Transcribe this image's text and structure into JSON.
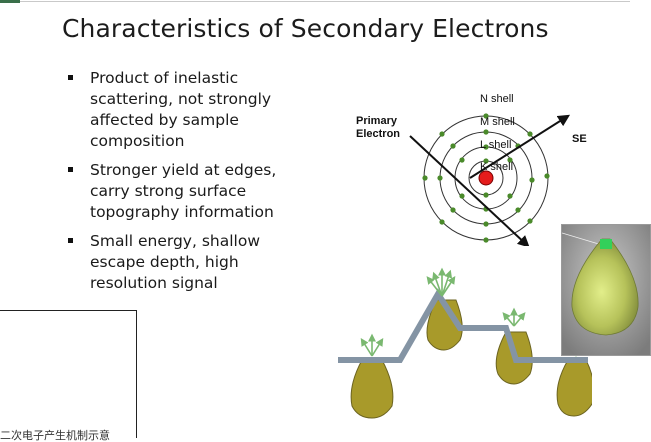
{
  "slide": {
    "title": "Characteristics of Secondary Electrons",
    "bullets": [
      "Product of inelastic scattering, not strongly affected by sample composition",
      "Stronger yield at edges, carry strong surface topography information",
      "Small energy, shallow escape depth, high resolution signal"
    ]
  },
  "atom_diagram": {
    "shells": [
      "N shell",
      "M shell",
      "L shell",
      "K shell"
    ],
    "primary_label_line1": "Primary",
    "primary_label_line2": "Electron",
    "se_label": "SE"
  },
  "footer": {
    "text": "二次电子产生机制示意"
  },
  "colors": {
    "title": "#1c1c1c",
    "nucleus": "#e51c1c",
    "electron": "#4a8a2a",
    "interaction_volume": "#a89a2a",
    "surface": "#8494a4",
    "emission_arrow": "#7ab870",
    "accent_bar": "#3a6f4a"
  }
}
